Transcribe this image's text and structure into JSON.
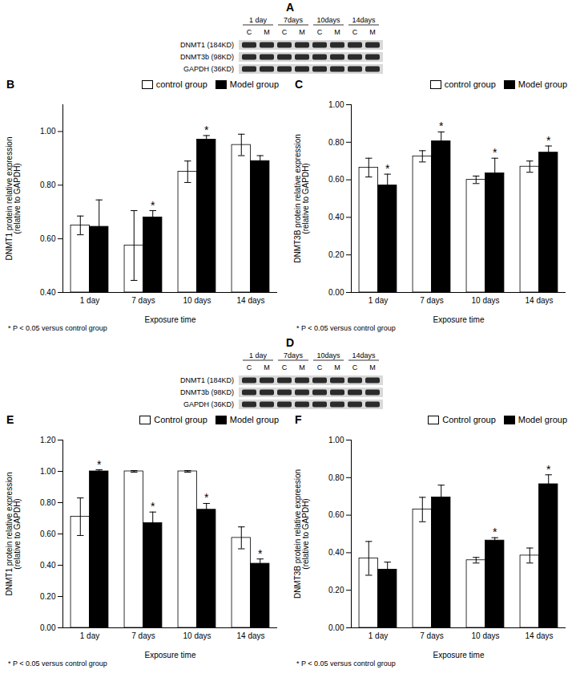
{
  "chart_data": [
    {
      "type": "bar",
      "title": "B",
      "categories": [
        "1 day",
        "7 days",
        "10 days",
        "14 days"
      ],
      "x_label": "Exposure time",
      "y_label": "DNMT1 protein relative expression\n(relative to GAPDH)",
      "ylim": [
        0.4,
        1.1
      ],
      "yticks": [
        {
          "value": 0.4,
          "label": "0.40"
        },
        {
          "value": 0.6,
          "label": "0.60"
        },
        {
          "value": 0.8,
          "label": "0.80"
        },
        {
          "value": 1.0,
          "label": "1.00"
        }
      ],
      "legend": "top-right",
      "footnote": "* P < 0.05  versus control group",
      "series": [
        {
          "name": "control group",
          "color": "#ffffff",
          "values": [
            0.65,
            0.575,
            0.85,
            0.95
          ],
          "errors": [
            0.035,
            0.13,
            0.04,
            0.04
          ],
          "annotations": [
            null,
            null,
            null,
            null
          ]
        },
        {
          "name": "Model group",
          "color": "#000000",
          "values": [
            0.645,
            0.68,
            0.97,
            0.89
          ],
          "errors": [
            0.1,
            0.025,
            0.015,
            0.02
          ],
          "annotations": [
            null,
            "*",
            "*",
            null
          ]
        }
      ]
    },
    {
      "type": "bar",
      "title": "C",
      "categories": [
        "1 day",
        "7 days",
        "10 days",
        "14 days"
      ],
      "x_label": "Exposure time",
      "y_label": "DNMT3B protein relative expression\n(relative to GAPDH)",
      "ylim": [
        0,
        1.0
      ],
      "yticks": [
        {
          "value": 0,
          "label": "0.00"
        },
        {
          "value": 0.2,
          "label": "0.20"
        },
        {
          "value": 0.4,
          "label": "0.40"
        },
        {
          "value": 0.6,
          "label": "0.60"
        },
        {
          "value": 0.8,
          "label": "0.80"
        },
        {
          "value": 1.0,
          "label": "1.00"
        }
      ],
      "legend": "top-right",
      "footnote": "* P < 0.05  versus control group",
      "series": [
        {
          "name": "control group",
          "color": "#ffffff",
          "values": [
            0.665,
            0.725,
            0.6,
            0.67
          ],
          "errors": [
            0.05,
            0.03,
            0.02,
            0.03
          ],
          "annotations": [
            null,
            null,
            null,
            null
          ]
        },
        {
          "name": "Model group",
          "color": "#000000",
          "values": [
            0.57,
            0.805,
            0.635,
            0.745
          ],
          "errors": [
            0.06,
            0.05,
            0.08,
            0.035
          ],
          "annotations": [
            "*",
            "*",
            "*",
            "*"
          ]
        }
      ]
    },
    {
      "type": "bar",
      "title": "E",
      "categories": [
        "1 day",
        "7 days",
        "10 days",
        "14 days"
      ],
      "x_label": "Exposure time",
      "y_label": "DNMT1 protein relative expression\n(relative to GAPDH)",
      "ylim": [
        0,
        1.2
      ],
      "yticks": [
        {
          "value": 0,
          "label": "0.00"
        },
        {
          "value": 0.2,
          "label": "0.20"
        },
        {
          "value": 0.4,
          "label": "0.40"
        },
        {
          "value": 0.6,
          "label": "0.60"
        },
        {
          "value": 0.8,
          "label": "0.80"
        },
        {
          "value": 1.0,
          "label": "1.00"
        },
        {
          "value": 1.2,
          "label": "1.20"
        }
      ],
      "legend": "top-right",
      "footnote": "* P < 0.05  versus control group",
      "series": [
        {
          "name": "Control group",
          "color": "#ffffff",
          "values": [
            0.71,
            1.0,
            1.0,
            0.575
          ],
          "errors": [
            0.12,
            0.005,
            0.005,
            0.07
          ],
          "annotations": [
            null,
            null,
            null,
            null
          ]
        },
        {
          "name": "Model group",
          "color": "#000000",
          "values": [
            1.0,
            0.67,
            0.755,
            0.41
          ],
          "errors": [
            0.01,
            0.07,
            0.04,
            0.03
          ],
          "annotations": [
            "*",
            "*",
            "*",
            "*"
          ]
        }
      ]
    },
    {
      "type": "bar",
      "title": "F",
      "categories": [
        "1 day",
        "7 days",
        "10 days",
        "14 days"
      ],
      "x_label": "Exposure time",
      "y_label": "DNMT3B protein relative expreesion\n(relative to GAPDH)",
      "ylim": [
        0,
        1.0
      ],
      "yticks": [
        {
          "value": 0,
          "label": "0.00"
        },
        {
          "value": 0.2,
          "label": "0.20"
        },
        {
          "value": 0.4,
          "label": "0.40"
        },
        {
          "value": 0.6,
          "label": "0.60"
        },
        {
          "value": 0.8,
          "label": "0.80"
        },
        {
          "value": 1.0,
          "label": "1.00"
        }
      ],
      "legend": "top-right",
      "footnote": "* P < 0.05  versus control group",
      "series": [
        {
          "name": "Control group",
          "color": "#ffffff",
          "values": [
            0.37,
            0.63,
            0.36,
            0.385
          ],
          "errors": [
            0.09,
            0.065,
            0.015,
            0.04
          ],
          "annotations": [
            null,
            null,
            null,
            null
          ]
        },
        {
          "name": "Model group",
          "color": "#000000",
          "values": [
            0.31,
            0.695,
            0.465,
            0.765
          ],
          "errors": [
            0.04,
            0.065,
            0.015,
            0.05
          ],
          "annotations": [
            null,
            null,
            "*",
            "*"
          ]
        }
      ]
    }
  ],
  "blots": [
    {
      "title": "A",
      "times": [
        "1 day",
        "7days",
        "10days",
        "14days"
      ],
      "lanes": [
        "C",
        "M",
        "C",
        "M",
        "C",
        "M",
        "C",
        "M"
      ],
      "proteins": [
        "DNMT1 (184KD)",
        "DNMT3b (98KD)",
        "GAPDH (36KD)"
      ]
    },
    {
      "title": "D",
      "times": [
        "1 day",
        "7days",
        "10days",
        "14days"
      ],
      "lanes": [
        "C",
        "M",
        "C",
        "M",
        "C",
        "M",
        "C",
        "M"
      ],
      "proteins": [
        "DNMT1 (184KD)",
        "DNMT3b (98KD)",
        "GAPDH (36KD)"
      ]
    }
  ]
}
